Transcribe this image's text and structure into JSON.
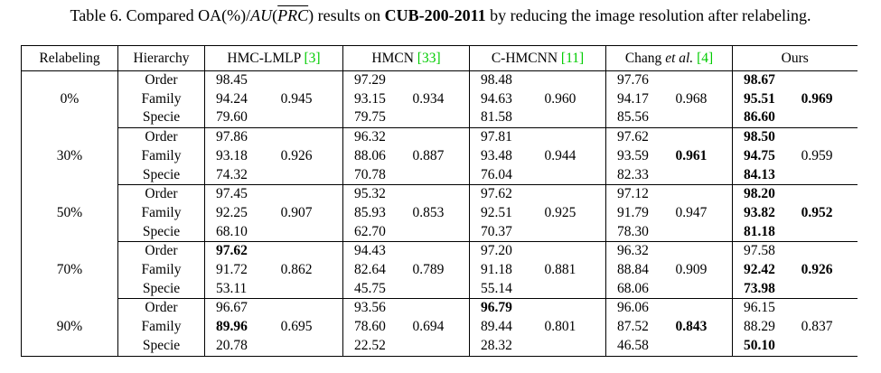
{
  "title": {
    "prefix": "Table 6. Compared OA(%)/",
    "au": "AU",
    "open_paren": "(",
    "prc": "PRC",
    "close_paren": ")",
    "mid": " results on ",
    "dataset": "CUB-200-2011",
    "suffix": " by reducing the image resolution after relabeling."
  },
  "colors": {
    "citation_green": "#00CC00",
    "text": "#000000",
    "background": "#FFFFFF"
  },
  "table": {
    "headers": [
      {
        "text": "Relabeling"
      },
      {
        "text": "Hierarchy"
      },
      {
        "text": "HMC-LMLP",
        "cite": "[3]"
      },
      {
        "text": "HMCN",
        "cite": "[33]"
      },
      {
        "text": "C-HMCNN",
        "cite": "[11]"
      },
      {
        "text": "Chang",
        "italic": "et al.",
        "cite": "[4]"
      },
      {
        "text": "Ours"
      }
    ],
    "row_labels": [
      "Order",
      "Family",
      "Specie"
    ],
    "groups": [
      {
        "relabeling": "0%",
        "methods": [
          {
            "oa": [
              "98.45",
              "94.24",
              "79.60"
            ],
            "au": "0.945",
            "bold_oa": [],
            "bold_au": false
          },
          {
            "oa": [
              "97.29",
              "93.15",
              "79.75"
            ],
            "au": "0.934",
            "bold_oa": [],
            "bold_au": false
          },
          {
            "oa": [
              "98.48",
              "94.63",
              "81.58"
            ],
            "au": "0.960",
            "bold_oa": [],
            "bold_au": false
          },
          {
            "oa": [
              "97.76",
              "94.17",
              "85.56"
            ],
            "au": "0.968",
            "bold_oa": [],
            "bold_au": false
          },
          {
            "oa": [
              "98.67",
              "95.51",
              "86.60"
            ],
            "au": "0.969",
            "bold_oa": [
              0,
              1,
              2
            ],
            "bold_au": true
          }
        ]
      },
      {
        "relabeling": "30%",
        "methods": [
          {
            "oa": [
              "97.86",
              "93.18",
              "74.32"
            ],
            "au": "0.926",
            "bold_oa": [],
            "bold_au": false
          },
          {
            "oa": [
              "96.32",
              "88.06",
              "70.78"
            ],
            "au": "0.887",
            "bold_oa": [],
            "bold_au": false
          },
          {
            "oa": [
              "97.81",
              "93.48",
              "76.04"
            ],
            "au": "0.944",
            "bold_oa": [],
            "bold_au": false
          },
          {
            "oa": [
              "97.62",
              "93.59",
              "82.33"
            ],
            "au": "0.961",
            "bold_oa": [],
            "bold_au": true
          },
          {
            "oa": [
              "98.50",
              "94.75",
              "84.13"
            ],
            "au": "0.959",
            "bold_oa": [
              0,
              1,
              2
            ],
            "bold_au": false
          }
        ]
      },
      {
        "relabeling": "50%",
        "methods": [
          {
            "oa": [
              "97.45",
              "92.25",
              "68.10"
            ],
            "au": "0.907",
            "bold_oa": [],
            "bold_au": false
          },
          {
            "oa": [
              "95.32",
              "85.93",
              "62.70"
            ],
            "au": "0.853",
            "bold_oa": [],
            "bold_au": false
          },
          {
            "oa": [
              "97.62",
              "92.51",
              "70.37"
            ],
            "au": "0.925",
            "bold_oa": [],
            "bold_au": false
          },
          {
            "oa": [
              "97.12",
              "91.79",
              "78.30"
            ],
            "au": "0.947",
            "bold_oa": [],
            "bold_au": false
          },
          {
            "oa": [
              "98.20",
              "93.82",
              "81.18"
            ],
            "au": "0.952",
            "bold_oa": [
              0,
              1,
              2
            ],
            "bold_au": true
          }
        ]
      },
      {
        "relabeling": "70%",
        "methods": [
          {
            "oa": [
              "97.62",
              "91.72",
              "53.11"
            ],
            "au": "0.862",
            "bold_oa": [
              0
            ],
            "bold_au": false
          },
          {
            "oa": [
              "94.43",
              "82.64",
              "45.75"
            ],
            "au": "0.789",
            "bold_oa": [],
            "bold_au": false
          },
          {
            "oa": [
              "97.20",
              "91.18",
              "55.14"
            ],
            "au": "0.881",
            "bold_oa": [],
            "bold_au": false
          },
          {
            "oa": [
              "96.32",
              "88.84",
              "68.06"
            ],
            "au": "0.909",
            "bold_oa": [],
            "bold_au": false
          },
          {
            "oa": [
              "97.58",
              "92.42",
              "73.98"
            ],
            "au": "0.926",
            "bold_oa": [
              1,
              2
            ],
            "bold_au": true
          }
        ]
      },
      {
        "relabeling": "90%",
        "methods": [
          {
            "oa": [
              "96.67",
              "89.96",
              "20.78"
            ],
            "au": "0.695",
            "bold_oa": [
              1
            ],
            "bold_au": false
          },
          {
            "oa": [
              "93.56",
              "78.60",
              "22.52"
            ],
            "au": "0.694",
            "bold_oa": [],
            "bold_au": false
          },
          {
            "oa": [
              "96.79",
              "89.44",
              "28.32"
            ],
            "au": "0.801",
            "bold_oa": [
              0
            ],
            "bold_au": false
          },
          {
            "oa": [
              "96.06",
              "87.52",
              "46.58"
            ],
            "au": "0.843",
            "bold_oa": [],
            "bold_au": true
          },
          {
            "oa": [
              "96.15",
              "88.29",
              "50.10"
            ],
            "au": "0.837",
            "bold_oa": [
              2
            ],
            "bold_au": false
          }
        ]
      }
    ]
  }
}
